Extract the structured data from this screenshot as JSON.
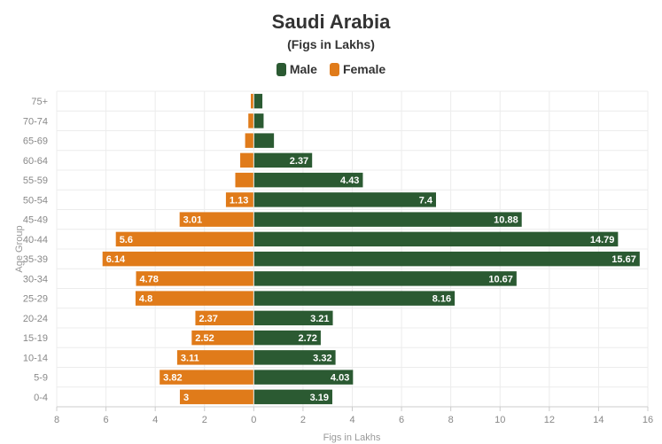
{
  "chart_data": {
    "type": "bar",
    "orientation": "horizontal",
    "layout": "population-pyramid",
    "title": "Saudi Arabia",
    "subtitle": "(Figs in Lakhs)",
    "xlabel": "Figs in Lakhs",
    "ylabel": "Age Group",
    "xlim": [
      -8,
      16
    ],
    "xticks": [
      -8,
      -6,
      -4,
      -2,
      0,
      2,
      4,
      6,
      8,
      10,
      12,
      14,
      16
    ],
    "xtick_labels": [
      "8",
      "6",
      "4",
      "2",
      "0",
      "2",
      "4",
      "6",
      "8",
      "10",
      "12",
      "14",
      "16"
    ],
    "grid": true,
    "legend_position": "top-center",
    "categories": [
      "75+",
      "70-74",
      "65-69",
      "60-64",
      "55-59",
      "50-54",
      "45-49",
      "40-44",
      "35-39",
      "30-34",
      "25-29",
      "20-24",
      "15-19",
      "10-14",
      "5-9",
      "0-4"
    ],
    "series": [
      {
        "name": "Male",
        "color": "#2b5a32",
        "values": [
          0.35,
          0.4,
          0.82,
          2.37,
          4.43,
          7.4,
          10.88,
          14.79,
          15.67,
          10.67,
          8.16,
          3.21,
          2.72,
          3.32,
          4.03,
          3.19
        ],
        "labels": [
          "",
          "",
          "",
          "2.37",
          "4.43",
          "7.4",
          "10.88",
          "14.79",
          "15.67",
          "10.67",
          "8.16",
          "3.21",
          "2.72",
          "3.32",
          "4.03",
          "3.19"
        ]
      },
      {
        "name": "Female",
        "color": "#e07b1a",
        "values": [
          0.12,
          0.22,
          0.35,
          0.55,
          0.75,
          1.13,
          3.01,
          5.6,
          6.14,
          4.78,
          4.8,
          2.37,
          2.52,
          3.11,
          3.82,
          3
        ],
        "labels": [
          "",
          "",
          "",
          "",
          "",
          "1.13",
          "3.01",
          "5.6",
          "6.14",
          "4.78",
          "4.8",
          "2.37",
          "2.52",
          "3.11",
          "3.82",
          "3"
        ]
      }
    ]
  }
}
